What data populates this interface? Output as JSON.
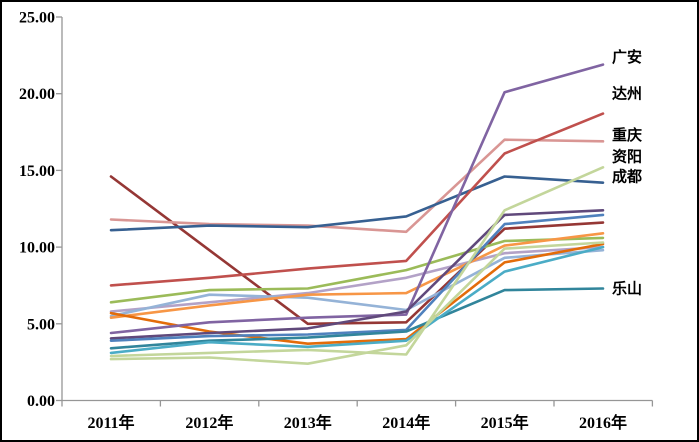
{
  "chart_data": {
    "type": "line",
    "title": "",
    "x_categories": [
      "2011年",
      "2012年",
      "2013年",
      "2014年",
      "2015年",
      "2016年"
    ],
    "y_axis": {
      "min": 0,
      "max": 25,
      "tick_interval": 5,
      "tick_labels": [
        "0.00",
        "5.00",
        "10.00",
        "15.00",
        "20.00",
        "25.00"
      ]
    },
    "grid": false,
    "legend_position": "none",
    "series": [
      {
        "name": "",
        "color": "#953735",
        "values": [
          14.6,
          9.8,
          5.0,
          5.1,
          11.2,
          11.6
        ]
      },
      {
        "name": "重庆",
        "color": "#D99694",
        "values": [
          11.8,
          11.5,
          11.4,
          11.0,
          17.0,
          16.9
        ]
      },
      {
        "name": "成都",
        "color": "#376091",
        "values": [
          11.1,
          11.4,
          11.3,
          12.0,
          14.6,
          14.2
        ]
      },
      {
        "name": "达州",
        "color": "#C0504D",
        "values": [
          7.5,
          8.0,
          8.6,
          9.1,
          16.1,
          18.7
        ]
      },
      {
        "name": "",
        "color": "#9BBB59",
        "values": [
          6.4,
          7.2,
          7.3,
          8.5,
          10.4,
          10.6
        ]
      },
      {
        "name": "",
        "color": "#B3A2C7",
        "values": [
          5.8,
          6.4,
          7.0,
          8.0,
          9.6,
          10.0
        ]
      },
      {
        "name": "",
        "color": "#95B3D7",
        "values": [
          5.5,
          6.9,
          6.7,
          5.9,
          9.3,
          9.8
        ]
      },
      {
        "name": "",
        "color": "#F79646",
        "values": [
          5.4,
          6.2,
          6.9,
          7.0,
          10.1,
          10.9
        ]
      },
      {
        "name": "",
        "color": "#E36C0A",
        "values": [
          5.7,
          4.5,
          3.7,
          4.0,
          9.0,
          10.2
        ]
      },
      {
        "name": "广安",
        "color": "#8064A2",
        "values": [
          4.4,
          5.1,
          5.4,
          5.6,
          20.1,
          21.9
        ]
      },
      {
        "name": "",
        "color": "#60497B",
        "values": [
          4.05,
          4.4,
          4.7,
          5.8,
          12.1,
          12.4
        ]
      },
      {
        "name": "",
        "color": "#4F81BD",
        "values": [
          3.9,
          4.2,
          4.3,
          4.6,
          11.5,
          12.1
        ]
      },
      {
        "name": "乐山",
        "color": "#31859B",
        "values": [
          3.4,
          3.9,
          4.1,
          4.5,
          7.2,
          7.3
        ]
      },
      {
        "name": "",
        "color": "#4BACC6",
        "values": [
          3.1,
          3.8,
          3.5,
          3.9,
          8.4,
          10.0
        ]
      },
      {
        "name": "资阳",
        "color": "#C3D69B",
        "values": [
          2.9,
          3.1,
          3.3,
          3.0,
          12.4,
          15.2
        ]
      },
      {
        "name": "",
        "color": "#C3D69B",
        "values": [
          2.7,
          2.8,
          2.4,
          3.6,
          9.9,
          10.3
        ]
      }
    ],
    "annotations": [
      {
        "text": "广安",
        "y_value": 22.4
      },
      {
        "text": "达州",
        "y_value": 20.0
      },
      {
        "text": "重庆",
        "y_value": 17.3
      },
      {
        "text": "资阳",
        "y_value": 15.9
      },
      {
        "text": "成都",
        "y_value": 14.6
      },
      {
        "text": "乐山",
        "y_value": 7.3
      }
    ],
    "axis_color": "#969696"
  }
}
